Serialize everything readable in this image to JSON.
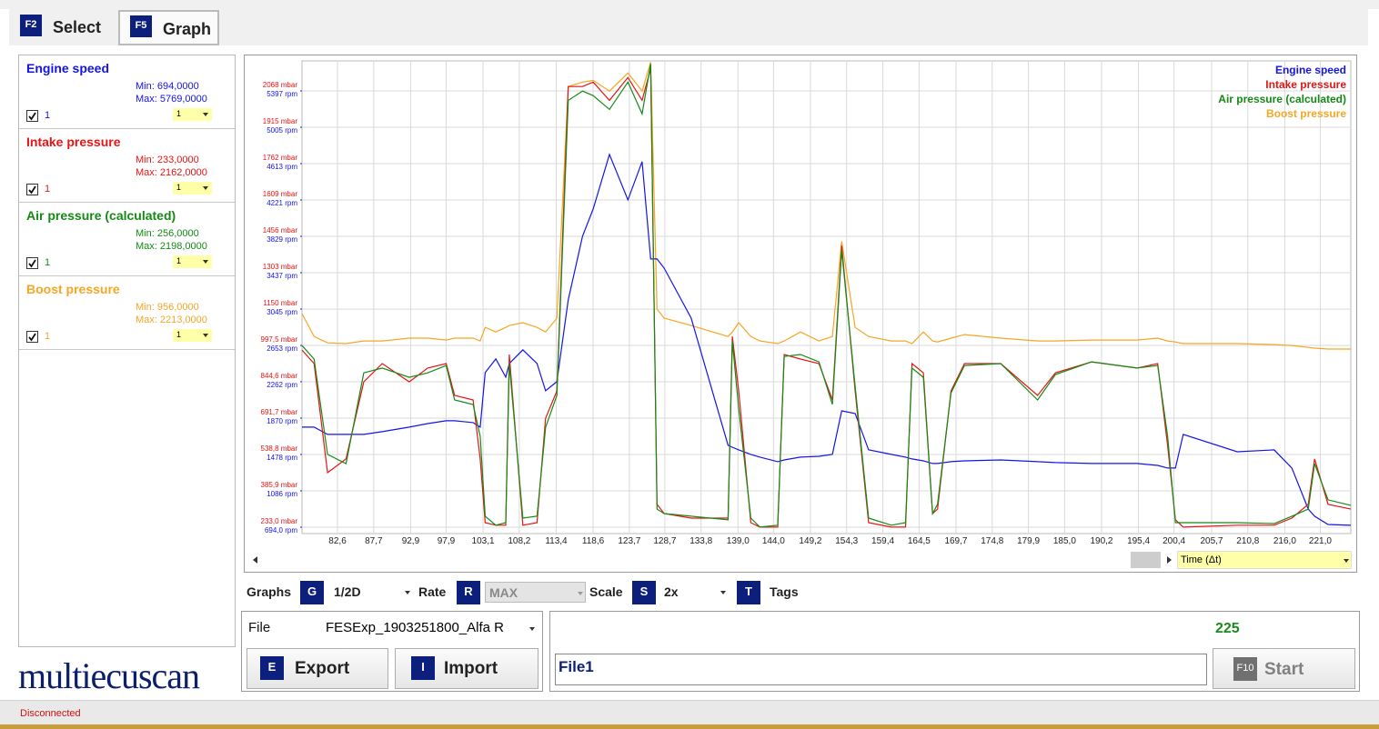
{
  "tabs": [
    {
      "key": "F2",
      "label": "Select"
    },
    {
      "key": "F5",
      "label": "Graph"
    }
  ],
  "channels": [
    {
      "min": "Min: 694,0000",
      "max": "Max: 5769,0000",
      "checkbox_label": "1",
      "scale": "1"
    },
    {
      "min": "Min: 233,0000",
      "max": "Max: 2162,0000",
      "checkbox_label": "1",
      "scale": "1"
    },
    {
      "min": "Min: 256,0000",
      "max": "Max: 2198,0000",
      "checkbox_label": "1",
      "scale": "1"
    },
    {
      "min": "Min: 956,0000",
      "max": "Max: 2213,0000",
      "checkbox_label": "1",
      "scale": "1"
    }
  ],
  "logo": "multiecuscan",
  "chart_data": {
    "type": "line",
    "grid": true,
    "legend": "upper right",
    "x_axis_selector": "Time (Δt)",
    "x": [
      77.6,
      79.3,
      81.2,
      83.8,
      86.3,
      88.9,
      92.7,
      95.3,
      97.9,
      99.1,
      101.7,
      102.7,
      103.4,
      104.9,
      106.3,
      106.8,
      108.7,
      110.7,
      111.9,
      113.5,
      115.1,
      117.1,
      118.6,
      120.9,
      123.5,
      125.5,
      126.7,
      127.6,
      128.6,
      132.4,
      137.6,
      138.2,
      139.1,
      140.8,
      142.1,
      144.6,
      145.5,
      147.8,
      150.4,
      152.3,
      153.6,
      155.5,
      157.4,
      160.6,
      162.6,
      163.5,
      165.1,
      166.4,
      167.1,
      169.0,
      170.9,
      176.0,
      181.2,
      183.7,
      188.8,
      195.2,
      198.1,
      199.5,
      200.6,
      201.7,
      209.3,
      214.5,
      217.0,
      219.3,
      220.2,
      222.1,
      225.3
    ],
    "xlim": [
      77.6,
      225.3
    ],
    "xticks": [
      {
        "value": 82.6,
        "label": "82,6"
      },
      {
        "value": 87.7,
        "label": "87,7"
      },
      {
        "value": 92.9,
        "label": "92,9"
      },
      {
        "value": 97.9,
        "label": "97,9"
      },
      {
        "value": 103.1,
        "label": "103,1"
      },
      {
        "value": 108.2,
        "label": "108,2"
      },
      {
        "value": 113.4,
        "label": "113,4"
      },
      {
        "value": 118.6,
        "label": "118,6"
      },
      {
        "value": 123.7,
        "label": "123,7"
      },
      {
        "value": 128.7,
        "label": "128,7"
      },
      {
        "value": 133.8,
        "label": "133,8"
      },
      {
        "value": 139.0,
        "label": "139,0"
      },
      {
        "value": 144.0,
        "label": "144,0"
      },
      {
        "value": 149.2,
        "label": "149,2"
      },
      {
        "value": 154.3,
        "label": "154,3"
      },
      {
        "value": 159.4,
        "label": "159,4"
      },
      {
        "value": 164.5,
        "label": "164,5"
      },
      {
        "value": 169.7,
        "label": "169,7"
      },
      {
        "value": 174.8,
        "label": "174,8"
      },
      {
        "value": 179.9,
        "label": "179,9"
      },
      {
        "value": 185.0,
        "label": "185,0"
      },
      {
        "value": 190.2,
        "label": "190,2"
      },
      {
        "value": 195.4,
        "label": "195,4"
      },
      {
        "value": 200.4,
        "label": "200,4"
      },
      {
        "value": 205.7,
        "label": "205,7"
      },
      {
        "value": 210.8,
        "label": "210,8"
      },
      {
        "value": 216.0,
        "label": "216,0"
      },
      {
        "value": 221.0,
        "label": "221,0"
      }
    ],
    "ylim": [
      206,
      2194
    ],
    "yticks": [
      {
        "value": 233.0,
        "label": "233,0 mbar"
      },
      {
        "value": 385.9,
        "label": "385,9 mbar"
      },
      {
        "value": 538.8,
        "label": "538,8 mbar"
      },
      {
        "value": 691.7,
        "label": "691,7 mbar"
      },
      {
        "value": 844.6,
        "label": "844,6 mbar"
      },
      {
        "value": 997.5,
        "label": "997,5 mbar"
      },
      {
        "value": 1150,
        "label": "1150 mbar"
      },
      {
        "value": 1303,
        "label": "1303 mbar"
      },
      {
        "value": 1456,
        "label": "1456 mbar"
      },
      {
        "value": 1609,
        "label": "1609 mbar"
      },
      {
        "value": 1762,
        "label": "1762 mbar"
      },
      {
        "value": 1915,
        "label": "1915 mbar"
      },
      {
        "value": 2068,
        "label": "2068 mbar"
      }
    ],
    "y2lim": [
      625,
      5720
    ],
    "y2ticks": [
      {
        "value": 694.0,
        "label": "694,0 rpm"
      },
      {
        "value": 1086,
        "label": "1086 rpm"
      },
      {
        "value": 1478,
        "label": "1478 rpm"
      },
      {
        "value": 1870,
        "label": "1870 rpm"
      },
      {
        "value": 2262,
        "label": "2262 rpm"
      },
      {
        "value": 2653,
        "label": "2653 rpm"
      },
      {
        "value": 3045,
        "label": "3045 rpm"
      },
      {
        "value": 3437,
        "label": "3437 rpm"
      },
      {
        "value": 3829,
        "label": "3829 rpm"
      },
      {
        "value": 4221,
        "label": "4221 rpm"
      },
      {
        "value": 4613,
        "label": "4613 rpm"
      },
      {
        "value": 5005,
        "label": "5005 rpm"
      },
      {
        "value": 5397,
        "label": "5397 rpm"
      }
    ],
    "series": [
      {
        "name": "Engine speed",
        "color": "#1414e6",
        "axis": "y2",
        "values": [
          1772,
          1772,
          1694,
          1694,
          1694,
          1723,
          1772,
          1811,
          1841,
          1841,
          1821,
          1772,
          2360,
          2507,
          2311,
          2458,
          2605,
          2458,
          2164,
          2262,
          3144,
          3830,
          4124,
          4712,
          4222,
          4634,
          3585,
          3585,
          3487,
          2948,
          1576,
          1556,
          1527,
          1478,
          1449,
          1400,
          1419,
          1449,
          1458,
          1478,
          1948,
          1919,
          1527,
          1478,
          1449,
          1429,
          1409,
          1380,
          1380,
          1400,
          1409,
          1419,
          1400,
          1390,
          1380,
          1380,
          1360,
          1331,
          1331,
          1694,
          1507,
          1527,
          1331,
          890,
          812,
          723,
          714
        ]
      },
      {
        "name": "Intake pressure",
        "color": "#e61414",
        "values": [
          978,
          921,
          462,
          520,
          844,
          921,
          844,
          902,
          921,
          787,
          768,
          520,
          252,
          241,
          241,
          959,
          241,
          252,
          691,
          806,
          2086,
          2086,
          2105,
          2028,
          2124,
          2028,
          2162,
          329,
          290,
          271,
          271,
          1035,
          806,
          252,
          233,
          233,
          959,
          940,
          921,
          768,
          1417,
          806,
          252,
          233,
          233,
          921,
          882,
          290,
          309,
          806,
          921,
          921,
          787,
          882,
          928,
          902,
          921,
          577,
          264,
          233,
          241,
          241,
          271,
          329,
          520,
          329,
          309
        ]
      },
      {
        "name": "Air pressure (calculated)",
        "color": "#148a14",
        "values": [
          997,
          940,
          539,
          500,
          882,
          902,
          863,
          882,
          913,
          768,
          749,
          615,
          279,
          241,
          252,
          921,
          271,
          279,
          653,
          787,
          2028,
          2067,
          2048,
          1990,
          2105,
          1971,
          2181,
          309,
          290,
          279,
          264,
          1016,
          730,
          271,
          233,
          241,
          951,
          959,
          928,
          749,
          1398,
          825,
          271,
          241,
          252,
          902,
          863,
          290,
          329,
          798,
          913,
          921,
          768,
          875,
          928,
          902,
          913,
          615,
          252,
          252,
          252,
          248,
          279,
          309,
          500,
          348,
          325
        ]
      },
      {
        "name": "Boost pressure",
        "color": "#f5a623",
        "values": [
          1131,
          1035,
          1008,
          1005,
          1016,
          1016,
          1028,
          1028,
          1020,
          1028,
          1028,
          1016,
          1073,
          1054,
          1073,
          1081,
          1093,
          1073,
          1054,
          1112,
          2086,
          2105,
          2112,
          2067,
          2143,
          2067,
          2189,
          1150,
          1112,
          1081,
          1035,
          1054,
          1093,
          1035,
          1016,
          1005,
          1016,
          1054,
          1016,
          1035,
          1436,
          1073,
          1035,
          1016,
          1016,
          1005,
          1054,
          1016,
          1012,
          1028,
          1043,
          1028,
          1016,
          1016,
          1020,
          1020,
          1028,
          1016,
          1012,
          1005,
          1005,
          1001,
          997,
          989,
          986,
          982,
          982
        ]
      }
    ]
  },
  "controls": [
    {
      "label": "Graphs",
      "key": "G",
      "value": "1/2D"
    },
    {
      "label": "Rate",
      "key": "R",
      "value": "MAX"
    },
    {
      "label": "Scale",
      "key": "S",
      "value": "2x"
    },
    {
      "key": "T",
      "label": "Tags"
    }
  ],
  "file_panel": {
    "label": "File",
    "file": "FESExp_1903251800_Alfa R",
    "export": {
      "key": "E",
      "label": "Export"
    },
    "import": {
      "key": "I",
      "label": "Import"
    }
  },
  "run_panel": {
    "counter": 225,
    "name": "File1",
    "start": {
      "key": "F10",
      "label": "Start"
    }
  },
  "status_bar": "Disconnected"
}
